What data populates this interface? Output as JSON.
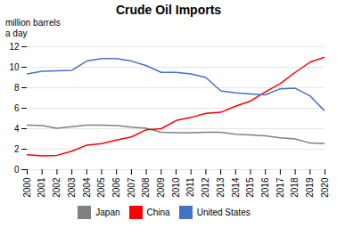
{
  "chart_data": {
    "type": "line",
    "title": "Crude Oil Imports",
    "ylabel": "million barrels\na day",
    "x": [
      2000,
      2001,
      2002,
      2003,
      2004,
      2005,
      2006,
      2007,
      2008,
      2009,
      2010,
      2011,
      2012,
      2013,
      2014,
      2015,
      2016,
      2017,
      2018,
      2019,
      2020
    ],
    "series": [
      {
        "name": "Japan",
        "color": "#808080",
        "values": [
          4.35,
          4.3,
          4.05,
          4.2,
          4.35,
          4.35,
          4.3,
          4.15,
          4.05,
          3.65,
          3.6,
          3.6,
          3.65,
          3.65,
          3.45,
          3.4,
          3.3,
          3.1,
          3.0,
          2.6,
          2.55
        ]
      },
      {
        "name": "China",
        "color": "#ff0000",
        "values": [
          1.45,
          1.35,
          1.4,
          1.8,
          2.4,
          2.55,
          2.9,
          3.2,
          3.9,
          4.0,
          4.8,
          5.1,
          5.5,
          5.6,
          6.2,
          6.7,
          7.6,
          8.4,
          9.5,
          10.5,
          11.0
        ]
      },
      {
        "name": "United States",
        "color": "#4472c4",
        "values": [
          9.35,
          9.6,
          9.65,
          9.7,
          10.6,
          10.85,
          10.85,
          10.6,
          10.15,
          9.5,
          9.5,
          9.35,
          9.0,
          7.7,
          7.5,
          7.4,
          7.3,
          7.9,
          7.95,
          7.2,
          5.7
        ]
      }
    ],
    "xlim": [
      2000,
      2020
    ],
    "xticks": [
      2000,
      2001,
      2002,
      2003,
      2004,
      2005,
      2006,
      2007,
      2008,
      2009,
      2010,
      2011,
      2012,
      2013,
      2014,
      2015,
      2016,
      2017,
      2018,
      2019,
      2020
    ],
    "ylim": [
      0,
      12
    ],
    "yticks": [
      0,
      2,
      4,
      6,
      8,
      10,
      12
    ],
    "grid": true,
    "legend": "bottom"
  }
}
